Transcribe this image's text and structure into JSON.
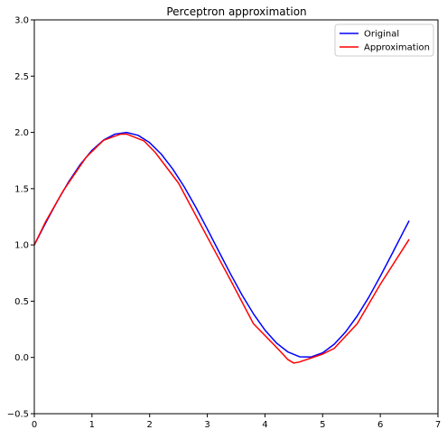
{
  "chart_data": {
    "type": "line",
    "title": "Perceptron approximation",
    "xlabel": "",
    "ylabel": "",
    "xlim": [
      0,
      7
    ],
    "ylim": [
      -0.5,
      3.0
    ],
    "xticks": [
      0,
      1,
      2,
      3,
      4,
      5,
      6,
      7
    ],
    "xtick_labels": [
      "0",
      "1",
      "2",
      "3",
      "4",
      "5",
      "6",
      "7"
    ],
    "yticks": [
      -0.5,
      0.0,
      0.5,
      1.0,
      1.5,
      2.0,
      2.5,
      3.0
    ],
    "ytick_labels": [
      "−0.5",
      "0.0",
      "0.5",
      "1.0",
      "1.5",
      "2.0",
      "2.5",
      "3.0"
    ],
    "grid": false,
    "legend_position": "top-right",
    "series": [
      {
        "name": "Original",
        "color": "#0000ff",
        "x": [
          0,
          0.2,
          0.4,
          0.6,
          0.8,
          1.0,
          1.2,
          1.4,
          1.6,
          1.8,
          2.0,
          2.2,
          2.4,
          2.6,
          2.8,
          3.0,
          3.2,
          3.4,
          3.6,
          3.8,
          4.0,
          4.2,
          4.4,
          4.6,
          4.8,
          5.0,
          5.2,
          5.4,
          5.6,
          5.8,
          6.0,
          6.2,
          6.4,
          6.5
        ],
        "y": [
          1.0,
          1.199,
          1.389,
          1.565,
          1.717,
          1.841,
          1.932,
          1.985,
          1.9996,
          1.974,
          1.909,
          1.808,
          1.675,
          1.516,
          1.335,
          1.141,
          0.942,
          0.745,
          0.557,
          0.388,
          0.243,
          0.128,
          0.048,
          0.006,
          0.004,
          0.041,
          0.117,
          0.228,
          0.369,
          0.535,
          0.721,
          0.917,
          1.117,
          1.215
        ]
      },
      {
        "name": "Approximation",
        "color": "#ff0000",
        "x": [
          0,
          0.2,
          0.5,
          0.9,
          1.2,
          1.5,
          1.6,
          1.9,
          2.1,
          2.5,
          3.0,
          3.4,
          3.8,
          4.2,
          4.4,
          4.5,
          4.6,
          5.0,
          5.2,
          5.6,
          6.0,
          6.5
        ],
        "y": [
          1.0,
          1.21,
          1.48,
          1.78,
          1.93,
          1.985,
          1.985,
          1.925,
          1.82,
          1.55,
          1.07,
          0.69,
          0.3,
          0.09,
          -0.02,
          -0.05,
          -0.04,
          0.03,
          0.08,
          0.3,
          0.65,
          1.05
        ]
      }
    ]
  }
}
